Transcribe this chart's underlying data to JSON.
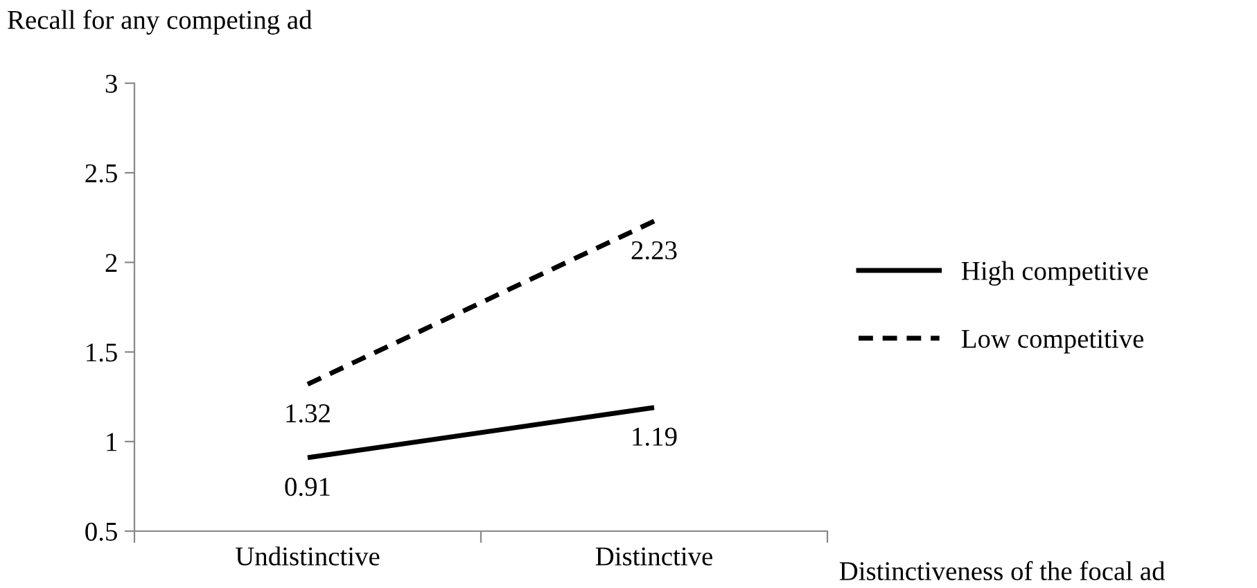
{
  "chart_data": {
    "type": "line",
    "ylabel": "Recall for any competing ad",
    "xlabel": "Distinctiveness of the focal ad",
    "categories": [
      "Undistinctive",
      "Distinctive"
    ],
    "series": [
      {
        "name": "High competitive",
        "color": "#000000",
        "line_style": "solid",
        "values": [
          0.91,
          1.19
        ]
      },
      {
        "name": "Low competitive",
        "color": "#000000",
        "line_style": "dashed",
        "values": [
          1.32,
          2.23
        ]
      }
    ],
    "ylim": [
      0.5,
      3
    ],
    "yticks": [
      0.5,
      1,
      1.5,
      2,
      2.5,
      3
    ],
    "data_labels": true,
    "grid": false,
    "legend": "right"
  }
}
